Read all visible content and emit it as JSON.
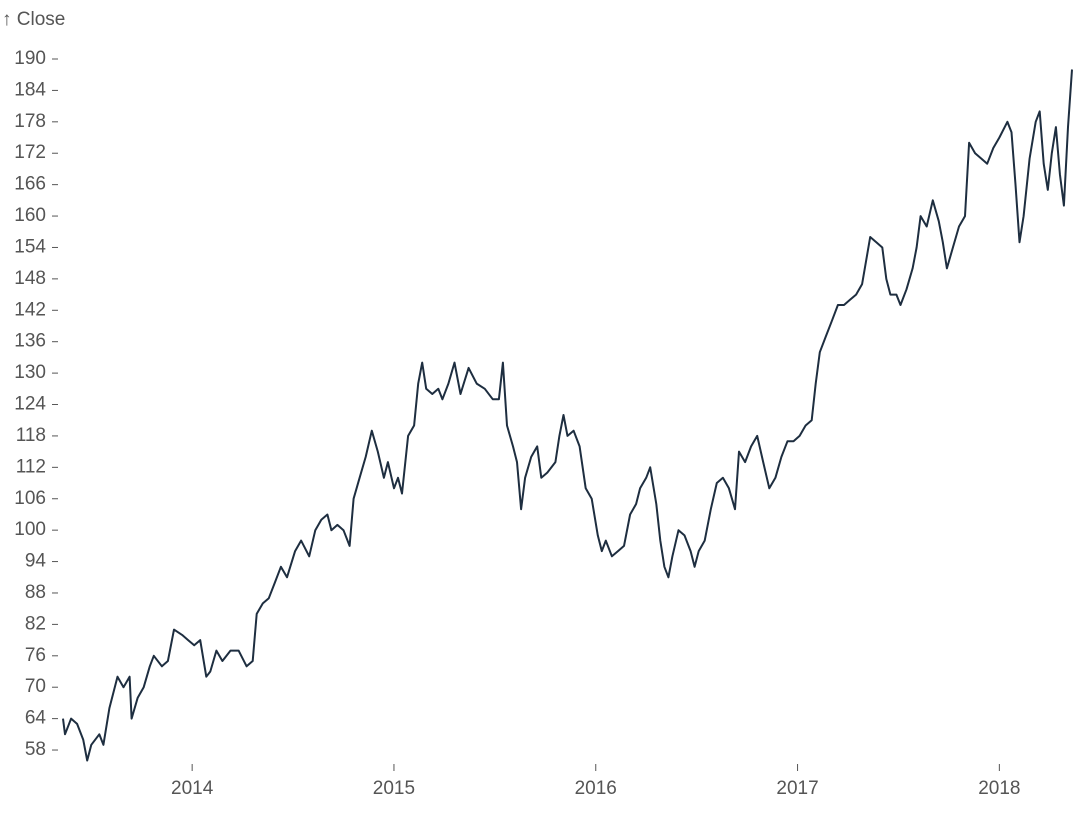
{
  "chart_data": {
    "type": "line",
    "y_label": "↑ Close",
    "color": "#1e2e40",
    "x": [
      2013.36,
      2013.37,
      2013.4,
      2013.43,
      2013.46,
      2013.48,
      2013.5,
      2013.54,
      2013.56,
      2013.59,
      2013.63,
      2013.66,
      2013.69,
      2013.7,
      2013.73,
      2013.76,
      2013.79,
      2013.81,
      2013.85,
      2013.88,
      2013.91,
      2013.95,
      2013.98,
      2014.01,
      2014.04,
      2014.07,
      2014.09,
      2014.12,
      2014.15,
      2014.19,
      2014.23,
      2014.27,
      2014.3,
      2014.32,
      2014.35,
      2014.38,
      2014.41,
      2014.44,
      2014.47,
      2014.51,
      2014.54,
      2014.58,
      2014.61,
      2014.64,
      2014.67,
      2014.69,
      2014.72,
      2014.75,
      2014.78,
      2014.8,
      2014.83,
      2014.86,
      2014.89,
      2014.92,
      2014.95,
      2014.97,
      2015.0,
      2015.02,
      2015.04,
      2015.07,
      2015.1,
      2015.12,
      2015.14,
      2015.16,
      2015.19,
      2015.22,
      2015.24,
      2015.27,
      2015.3,
      2015.33,
      2015.37,
      2015.41,
      2015.45,
      2015.49,
      2015.52,
      2015.54,
      2015.56,
      2015.59,
      2015.61,
      2015.63,
      2015.65,
      2015.68,
      2015.71,
      2015.73,
      2015.76,
      2015.8,
      2015.82,
      2015.84,
      2015.86,
      2015.89,
      2015.92,
      2015.95,
      2015.98,
      2016.01,
      2016.03,
      2016.05,
      2016.08,
      2016.11,
      2016.14,
      2016.17,
      2016.2,
      2016.22,
      2016.25,
      2016.27,
      2016.3,
      2016.32,
      2016.34,
      2016.36,
      2016.38,
      2016.41,
      2016.44,
      2016.47,
      2016.49,
      2016.51,
      2016.54,
      2016.57,
      2016.6,
      2016.63,
      2016.66,
      2016.69,
      2016.71,
      2016.74,
      2016.77,
      2016.8,
      2016.83,
      2016.86,
      2016.89,
      2016.92,
      2016.95,
      2016.98,
      2017.01,
      2017.04,
      2017.07,
      2017.09,
      2017.11,
      2017.14,
      2017.17,
      2017.2,
      2017.23,
      2017.26,
      2017.29,
      2017.32,
      2017.36,
      2017.39,
      2017.42,
      2017.44,
      2017.46,
      2017.49,
      2017.51,
      2017.54,
      2017.57,
      2017.59,
      2017.61,
      2017.64,
      2017.67,
      2017.7,
      2017.72,
      2017.74,
      2017.77,
      2017.8,
      2017.83,
      2017.85,
      2017.88,
      2017.91,
      2017.94,
      2017.97,
      2018.0,
      2018.04,
      2018.06,
      2018.08,
      2018.1,
      2018.12,
      2018.15,
      2018.18,
      2018.2,
      2018.22,
      2018.24,
      2018.26,
      2018.28,
      2018.3,
      2018.32,
      2018.34,
      2018.36
    ],
    "values": [
      64,
      61,
      64,
      63,
      60,
      56,
      59,
      61,
      59,
      66,
      72,
      70,
      72,
      64,
      68,
      70,
      74,
      76,
      74,
      75,
      81,
      80,
      79,
      78,
      79,
      72,
      73,
      77,
      75,
      77,
      77,
      74,
      75,
      84,
      86,
      87,
      90,
      93,
      91,
      96,
      98,
      95,
      100,
      102,
      103,
      100,
      101,
      100,
      97,
      106,
      110,
      114,
      119,
      115,
      110,
      113,
      108,
      110,
      107,
      118,
      120,
      128,
      132,
      127,
      126,
      127,
      125,
      128,
      132,
      126,
      131,
      128,
      127,
      125,
      125,
      132,
      120,
      116,
      113,
      104,
      110,
      114,
      116,
      110,
      111,
      113,
      118,
      122,
      118,
      119,
      116,
      108,
      106,
      99,
      96,
      98,
      95,
      96,
      97,
      103,
      105,
      108,
      110,
      112,
      105,
      98,
      93,
      91,
      95,
      100,
      99,
      96,
      93,
      96,
      98,
      104,
      109,
      110,
      108,
      104,
      115,
      113,
      116,
      118,
      113,
      108,
      110,
      114,
      117,
      117,
      118,
      120,
      121,
      128,
      134,
      137,
      140,
      143,
      143,
      144,
      145,
      147,
      156,
      155,
      154,
      148,
      145,
      145,
      143,
      146,
      150,
      154,
      160,
      158,
      163,
      159,
      155,
      150,
      154,
      158,
      160,
      174,
      172,
      171,
      170,
      173,
      175,
      178,
      176,
      166,
      155,
      160,
      171,
      178,
      180,
      170,
      165,
      172,
      177,
      168,
      162,
      177,
      188
    ],
    "xlim": [
      2013.36,
      2018.36
    ],
    "xticks": [
      2014,
      2015,
      2016,
      2017,
      2018
    ],
    "ylim": [
      56,
      190
    ],
    "yticks": [
      58,
      64,
      70,
      76,
      82,
      88,
      94,
      100,
      106,
      112,
      118,
      124,
      130,
      136,
      142,
      148,
      154,
      160,
      166,
      172,
      178,
      184,
      190
    ]
  }
}
